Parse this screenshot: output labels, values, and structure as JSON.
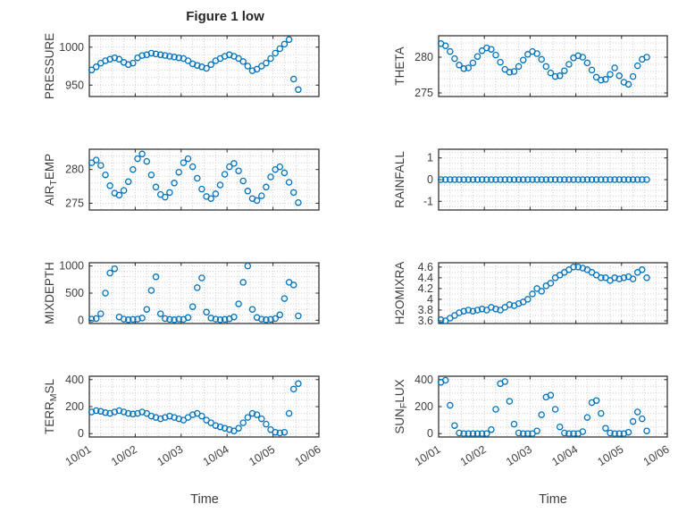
{
  "figure": {
    "title": "Figure 1 low",
    "xlabel": "Time",
    "x_tick_labels": [
      "10/01",
      "10/02",
      "10/03",
      "10/04",
      "10/05",
      "10/06"
    ],
    "marker_color": "#0072BD"
  },
  "chart_data": {
    "type": "scatter",
    "x_axis": "days since 10/01",
    "xlim": [
      0,
      5
    ],
    "x_days": [
      0.05,
      0.15,
      0.25,
      0.35,
      0.45,
      0.55,
      0.65,
      0.75,
      0.85,
      0.95,
      1.05,
      1.15,
      1.25,
      1.35,
      1.45,
      1.55,
      1.65,
      1.75,
      1.85,
      1.95,
      2.05,
      2.15,
      2.25,
      2.35,
      2.45,
      2.55,
      2.65,
      2.75,
      2.85,
      2.95,
      3.05,
      3.15,
      3.25,
      3.35,
      3.45,
      3.55,
      3.65,
      3.75,
      3.85,
      3.95,
      4.05,
      4.15,
      4.25,
      4.35,
      4.45,
      4.55
    ],
    "charts": [
      {
        "type": "scatter",
        "ylabel": "PRESSURE",
        "row": 0,
        "col": 0,
        "ylim": [
          935,
          1015
        ],
        "yticks": [
          950,
          1000
        ],
        "grid_step": 10,
        "y": [
          970,
          974,
          979,
          982,
          984,
          986,
          984,
          980,
          977,
          979,
          986,
          989,
          990,
          992,
          991,
          990,
          989,
          988,
          987,
          986,
          985,
          982,
          978,
          976,
          974,
          972,
          977,
          982,
          985,
          988,
          990,
          988,
          985,
          981,
          975,
          969,
          971,
          975,
          979,
          985,
          992,
          998,
          1004,
          1010,
          958,
          944
        ]
      },
      {
        "type": "scatter",
        "ylabel": "THETA",
        "row": 0,
        "col": 1,
        "ylim": [
          274.5,
          283
        ],
        "yticks": [
          275,
          280
        ],
        "grid_step": 1,
        "y": [
          281.9,
          281.6,
          280.8,
          279.8,
          278.9,
          278.4,
          278.5,
          279.2,
          280.1,
          280.9,
          281.3,
          281.1,
          280.3,
          279.3,
          278.3,
          277.9,
          278.0,
          278.7,
          279.6,
          280.4,
          280.8,
          280.5,
          279.7,
          278.7,
          277.8,
          277.3,
          277.4,
          278.1,
          279.0,
          279.9,
          280.2,
          280.0,
          279.2,
          278.2,
          277.2,
          276.8,
          276.9,
          277.6,
          278.5,
          277.4,
          276.5,
          276.2,
          277.3,
          278.8,
          279.7,
          280.0
        ]
      },
      {
        "type": "scatter",
        "ylabel": "AIR_TEMP",
        "row": 1,
        "col": 0,
        "ylim": [
          274,
          283
        ],
        "yticks": [
          275,
          280
        ],
        "grid_step": 1,
        "y": [
          281.0,
          281.4,
          280.6,
          279.2,
          277.6,
          276.5,
          276.2,
          276.9,
          278.2,
          280.0,
          281.6,
          282.3,
          281.2,
          279.2,
          277.4,
          276.3,
          275.9,
          276.6,
          278.0,
          279.6,
          281.0,
          281.6,
          280.4,
          278.7,
          277.1,
          276.0,
          275.7,
          276.4,
          277.7,
          279.3,
          280.4,
          280.9,
          279.8,
          278.3,
          276.8,
          275.7,
          275.4,
          276.1,
          277.4,
          278.9,
          280.0,
          280.4,
          279.5,
          278.1,
          276.6,
          275.1
        ]
      },
      {
        "type": "scatter",
        "ylabel": "RAINFALL",
        "row": 1,
        "col": 1,
        "ylim": [
          -1.4,
          1.4
        ],
        "yticks": [
          -1,
          0,
          1
        ],
        "grid_step": 0.25,
        "y": [
          0,
          0,
          0,
          0,
          0,
          0,
          0,
          0,
          0,
          0,
          0,
          0,
          0,
          0,
          0,
          0,
          0,
          0,
          0,
          0,
          0,
          0,
          0,
          0,
          0,
          0,
          0,
          0,
          0,
          0,
          0,
          0,
          0,
          0,
          0,
          0,
          0,
          0,
          0,
          0,
          0,
          0,
          0,
          0,
          0,
          0
        ]
      },
      {
        "type": "scatter",
        "ylabel": "MIXDEPTH",
        "row": 2,
        "col": 0,
        "ylim": [
          -60,
          1060
        ],
        "yticks": [
          0,
          500,
          1000
        ],
        "grid_step": 100,
        "y": [
          20,
          30,
          120,
          500,
          870,
          950,
          60,
          20,
          10,
          15,
          20,
          40,
          200,
          550,
          800,
          120,
          30,
          15,
          10,
          20,
          15,
          50,
          250,
          600,
          780,
          150,
          40,
          20,
          10,
          15,
          25,
          60,
          300,
          700,
          1000,
          200,
          50,
          20,
          10,
          15,
          30,
          100,
          400,
          700,
          650,
          80
        ]
      },
      {
        "type": "scatter",
        "ylabel": "H2OMIXRA",
        "row": 2,
        "col": 1,
        "ylim": [
          3.55,
          4.68
        ],
        "yticks": [
          3.6,
          3.8,
          4,
          4.2,
          4.4,
          4.6
        ],
        "grid_step": 0.1,
        "y": [
          3.62,
          3.6,
          3.65,
          3.7,
          3.75,
          3.78,
          3.8,
          3.78,
          3.8,
          3.82,
          3.8,
          3.85,
          3.82,
          3.8,
          3.85,
          3.9,
          3.88,
          3.92,
          3.95,
          4.0,
          4.1,
          4.2,
          4.15,
          4.25,
          4.3,
          4.4,
          4.45,
          4.5,
          4.55,
          4.6,
          4.6,
          4.58,
          4.55,
          4.5,
          4.45,
          4.4,
          4.4,
          4.35,
          4.4,
          4.38,
          4.4,
          4.42,
          4.38,
          4.5,
          4.55,
          4.4
        ]
      },
      {
        "type": "scatter",
        "ylabel": "TERR_MSL",
        "row": 3,
        "col": 0,
        "ylim": [
          -25,
          425
        ],
        "yticks": [
          0,
          200,
          400
        ],
        "grid_step": 50,
        "y": [
          160,
          170,
          165,
          155,
          150,
          160,
          170,
          160,
          150,
          145,
          150,
          160,
          150,
          130,
          120,
          110,
          120,
          130,
          120,
          110,
          100,
          120,
          140,
          150,
          130,
          100,
          80,
          60,
          50,
          40,
          30,
          20,
          40,
          80,
          120,
          150,
          140,
          110,
          70,
          30,
          10,
          5,
          10,
          150,
          330,
          370
        ]
      },
      {
        "type": "scatter",
        "ylabel": "SUN_FLUX",
        "row": 3,
        "col": 1,
        "ylim": [
          -25,
          425
        ],
        "yticks": [
          0,
          200,
          400
        ],
        "grid_step": 50,
        "y": [
          380,
          395,
          210,
          60,
          5,
          0,
          0,
          0,
          0,
          0,
          0,
          30,
          180,
          370,
          385,
          240,
          70,
          5,
          0,
          0,
          0,
          20,
          140,
          270,
          285,
          180,
          50,
          5,
          0,
          0,
          0,
          15,
          120,
          230,
          245,
          150,
          40,
          5,
          0,
          0,
          0,
          10,
          90,
          160,
          110,
          20
        ]
      }
    ]
  }
}
